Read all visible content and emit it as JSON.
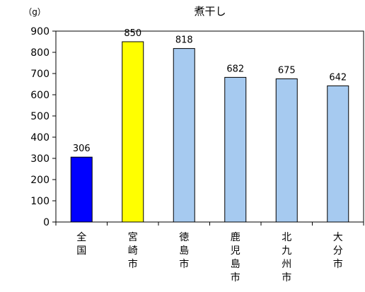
{
  "chart_data": {
    "type": "bar",
    "title": "煮干し",
    "ylabel": "（g）",
    "xlabel": "",
    "categories": [
      "全国",
      "宮崎市",
      "徳島市",
      "鹿児島市",
      "北九州市",
      "大分市"
    ],
    "values": [
      306,
      850,
      818,
      682,
      675,
      642
    ],
    "data_labels": [
      "306",
      "850",
      "818",
      "682",
      "675",
      "642"
    ],
    "ylim": [
      0,
      900
    ],
    "yticks": [
      0,
      100,
      200,
      300,
      400,
      500,
      600,
      700,
      800,
      900
    ],
    "legend": "none",
    "grid": false,
    "bar_colors": [
      "#0000ff",
      "#ffff00",
      "#a6caf0",
      "#a6caf0",
      "#a6caf0",
      "#a6caf0"
    ],
    "bar_stroke": "#000000"
  }
}
